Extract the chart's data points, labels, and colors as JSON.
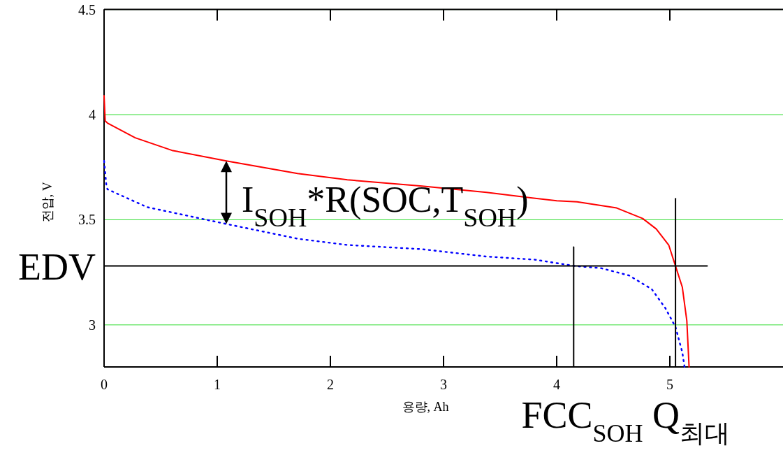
{
  "chart_data": {
    "type": "line",
    "xlabel": "용량, Ah",
    "ylabel": "전압, V",
    "xlim": [
      0,
      6
    ],
    "xticks": [
      0,
      1,
      2,
      3,
      4,
      5
    ],
    "ylim": [
      2.8,
      4.5
    ],
    "yticks": [
      3,
      3.5,
      4,
      4.5
    ],
    "grid": "y",
    "marker": "none",
    "series": [
      {
        "color": "#ff0000",
        "line_style": "solid",
        "x": [
          0,
          0.01,
          0.03,
          0.275,
          0.6,
          1.08,
          1.71,
          2.15,
          2.81,
          3.38,
          4.0,
          4.18,
          4.53,
          4.76,
          4.88,
          4.99,
          5.05,
          5.11,
          5.15,
          5.17
        ],
        "values": [
          4.09,
          3.97,
          3.96,
          3.89,
          3.83,
          3.78,
          3.72,
          3.69,
          3.66,
          3.63,
          3.59,
          3.585,
          3.556,
          3.506,
          3.456,
          3.38,
          3.28,
          3.18,
          3.02,
          2.8
        ]
      },
      {
        "color": "#0000ff",
        "line_style": "dotted",
        "x": [
          0,
          0.02,
          0.03,
          0.38,
          1.08,
          1.71,
          2.15,
          2.81,
          3.38,
          3.81,
          4.16,
          4.39,
          4.64,
          4.84,
          4.96,
          5.05,
          5.11,
          5.13
        ],
        "values": [
          3.78,
          3.665,
          3.645,
          3.56,
          3.48,
          3.41,
          3.38,
          3.36,
          3.325,
          3.31,
          3.28,
          3.27,
          3.235,
          3.17,
          3.08,
          2.99,
          2.87,
          2.8
        ]
      },
      {
        "color": "#000000",
        "line_style": "solid",
        "x": [
          0,
          5.33
        ],
        "values": [
          3.28,
          3.28
        ]
      },
      {
        "color": "#000000",
        "line_style": "solid",
        "x": [
          4.15,
          4.15
        ],
        "values": [
          2.8,
          3.37
        ]
      },
      {
        "color": "#000000",
        "line_style": "solid",
        "x": [
          5.05,
          5.05
        ],
        "values": [
          2.8,
          3.6
        ]
      }
    ],
    "annotations": [
      {
        "text": "EDV",
        "x": 0,
        "y": 3.28
      },
      "I$_{SOH}$*R(SOC,T$_{SOH}$)",
      "FCC$_{SOH}$ Q$_{최대}$"
    ]
  }
}
